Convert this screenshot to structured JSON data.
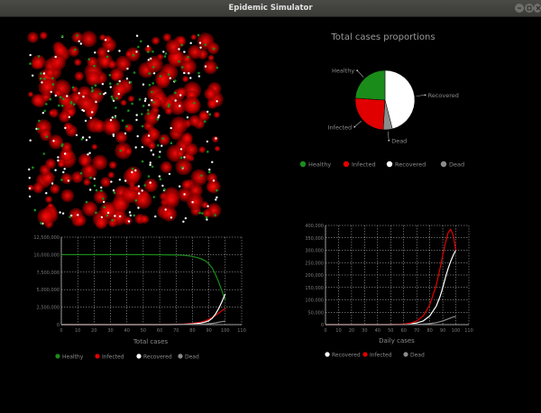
{
  "window": {
    "title": "Epidemic Simulator",
    "controls": [
      "minimize-icon",
      "maximize-icon",
      "close-icon"
    ]
  },
  "colors": {
    "healthy": "#1a8c1a",
    "infected": "#e00000",
    "recovered": "#ffffff",
    "dead": "#8c8c8c",
    "grid": "#bbbbbb",
    "text": "#9a9a9a"
  },
  "simulation": {
    "description_population": [
      "healthy",
      "infected",
      "recovered"
    ]
  },
  "pie_chart": {
    "title": "Total cases proportions",
    "chart_data": {
      "type": "pie",
      "title": "Total cases proportions",
      "labels": [
        "Recovered",
        "Dead",
        "Infected",
        "Healthy"
      ],
      "values": [
        46,
        5,
        25,
        24
      ],
      "legend": [
        "Healthy",
        "Infected",
        "Recovered",
        "Dead"
      ],
      "legend_placement": "bottom"
    }
  },
  "total_cases_chart": {
    "xlabel": "Total cases",
    "legend": [
      "Healthy",
      "Infected",
      "Recovered",
      "Dead"
    ],
    "chart_data": {
      "type": "line",
      "xlabel": "Total cases",
      "ylabel": "",
      "xlim": [
        0,
        110
      ],
      "ylim": [
        0,
        12500000
      ],
      "x_ticks": [
        0,
        10,
        20,
        30,
        40,
        50,
        60,
        70,
        80,
        90,
        100,
        110
      ],
      "y_ticks": [
        0,
        2500000,
        5000000,
        7500000,
        10000000,
        12500000
      ],
      "y_tick_labels": [
        "0",
        "2,500,000",
        "5,000,000",
        "7,500,000",
        "10,000,000",
        "12,500,000"
      ],
      "grid": true,
      "x": [
        0,
        10,
        20,
        30,
        40,
        50,
        60,
        65,
        70,
        75,
        80,
        85,
        88,
        90,
        92,
        94,
        96,
        98,
        100
      ],
      "series": [
        {
          "name": "Healthy",
          "values": [
            10000000,
            10000000,
            10000000,
            10000000,
            10000000,
            10000000,
            9990000,
            9980000,
            9950000,
            9900000,
            9750000,
            9450000,
            9100000,
            8700000,
            8100000,
            7200000,
            6100000,
            4800000,
            3500000
          ]
        },
        {
          "name": "Infected",
          "values": [
            0,
            0,
            0,
            0,
            0,
            0,
            5000,
            15000,
            40000,
            80000,
            180000,
            350000,
            550000,
            750000,
            1000000,
            1300000,
            1650000,
            2000000,
            2300000
          ]
        },
        {
          "name": "Recovered",
          "values": [
            0,
            0,
            0,
            0,
            0,
            0,
            2000,
            5000,
            15000,
            40000,
            100000,
            220000,
            380000,
            550000,
            900000,
            1500000,
            2300000,
            3300000,
            4400000
          ]
        },
        {
          "name": "Dead",
          "values": [
            0,
            0,
            0,
            0,
            0,
            0,
            0,
            1000,
            3000,
            8000,
            20000,
            50000,
            90000,
            130000,
            180000,
            250000,
            330000,
            420000,
            500000
          ]
        }
      ]
    }
  },
  "daily_cases_chart": {
    "xlabel": "Daily cases",
    "legend": [
      "Recovered",
      "Infected",
      "Dead"
    ],
    "chart_data": {
      "type": "line",
      "xlabel": "Daily cases",
      "ylabel": "",
      "xlim": [
        0,
        110
      ],
      "ylim": [
        0,
        400000
      ],
      "x_ticks": [
        0,
        10,
        20,
        30,
        40,
        50,
        60,
        70,
        80,
        90,
        100,
        110
      ],
      "y_ticks": [
        0,
        50000,
        100000,
        150000,
        200000,
        250000,
        300000,
        350000,
        400000
      ],
      "y_tick_labels": [
        "0",
        "50,000",
        "100,000",
        "150,000",
        "200,000",
        "250,000",
        "300,000",
        "350,000",
        "400,000"
      ],
      "grid": true,
      "x": [
        0,
        10,
        20,
        30,
        40,
        50,
        60,
        65,
        70,
        75,
        80,
        85,
        88,
        90,
        92,
        94,
        96,
        98,
        100
      ],
      "series": [
        {
          "name": "Recovered",
          "values": [
            0,
            0,
            0,
            0,
            0,
            0,
            1000,
            3000,
            7000,
            15000,
            35000,
            75000,
            115000,
            150000,
            190000,
            225000,
            255000,
            280000,
            300000
          ]
        },
        {
          "name": "Infected",
          "values": [
            0,
            0,
            0,
            0,
            0,
            0,
            2000,
            6000,
            15000,
            35000,
            80000,
            160000,
            230000,
            280000,
            330000,
            370000,
            385000,
            360000,
            300000
          ]
        },
        {
          "name": "Dead",
          "values": [
            0,
            0,
            0,
            0,
            0,
            0,
            0,
            500,
            1000,
            2000,
            4000,
            8000,
            12000,
            15000,
            19000,
            23000,
            27000,
            31000,
            33000
          ]
        }
      ]
    }
  }
}
